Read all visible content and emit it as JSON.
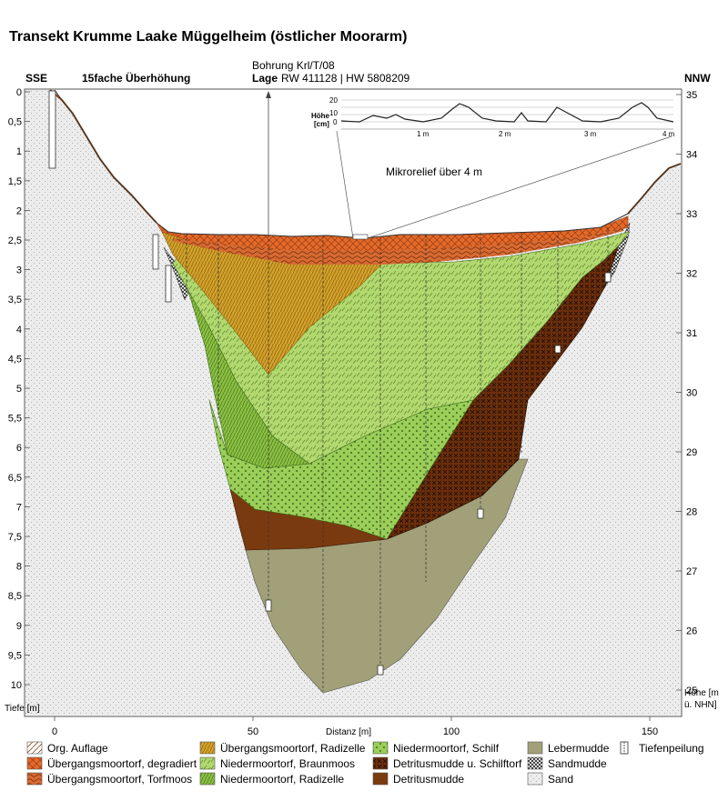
{
  "header": {
    "title": "Transekt Krumme Laake Müggelheim (östlicher Moorarm)",
    "left_label": "SSE",
    "right_label": "NNW",
    "exaggeration": "15fache Überhöhung",
    "borehole_label": "Bohrung Krl/T/08",
    "location_bold": "Lage",
    "location_value": "RW 411128 | HW 5808209"
  },
  "inset": {
    "title": "Mikrorelief über 4 m",
    "ylabel_line1": "Höhe",
    "ylabel_line2": "[cm]",
    "y_ticks": [
      "20",
      "10",
      "0"
    ],
    "x_ticks": [
      "1 m",
      "2 m",
      "3 m",
      "4 m"
    ]
  },
  "axes": {
    "left_ticks": [
      "0",
      "0,5",
      "1",
      "1,5",
      "2",
      "2,5",
      "3",
      "3,5",
      "4",
      "4,5",
      "5",
      "5,5",
      "6",
      "6,5",
      "7",
      "7,5",
      "8",
      "8,5",
      "9",
      "9,5",
      "10"
    ],
    "right_ticks": [
      "35",
      "34",
      "33",
      "32",
      "31",
      "30",
      "29",
      "28",
      "27",
      "26",
      "25"
    ],
    "bottom_ticks": [
      "0",
      "50",
      "100",
      "150"
    ],
    "left_title": "Tiefe [m]",
    "right_title_line1": "Höhe [m",
    "right_title_line2": "ü. NHN]",
    "bottom_title": "Distanz [m]"
  },
  "legend": [
    {
      "key": "org",
      "label": "Org. Auflage"
    },
    {
      "key": "degr",
      "label": "Übergangsmoortorf, degradiert"
    },
    {
      "key": "torf",
      "label": "Übergangsmoortorf, Torfmoos"
    },
    {
      "key": "radu",
      "label": "Übergangsmoortorf, Radizelle"
    },
    {
      "key": "braun",
      "label": "Niedermoortorf, Braunmoos"
    },
    {
      "key": "radn",
      "label": "Niedermoortorf, Radizelle"
    },
    {
      "key": "schilf",
      "label": "Niedermoortorf, Schilf"
    },
    {
      "key": "detschilf",
      "label": "Detritusmudde u. Schilftorf"
    },
    {
      "key": "det",
      "label": "Detritusmudde"
    },
    {
      "key": "leber",
      "label": "Lebermudde"
    },
    {
      "key": "sandm",
      "label": "Sandmudde"
    },
    {
      "key": "sand",
      "label": "Sand"
    },
    {
      "key": "peil",
      "label": "Tiefenpeilung"
    }
  ],
  "colors": {
    "sand": "#ececec",
    "lebermudde": "#a1a078",
    "detritusmudde": "#7a3a10",
    "detritus_schilf": "#6b2e0c",
    "niedermoor_schilf": "#9ccf5a",
    "niedermoor_braunmoos": "#b2d870",
    "niedermoor_radizelle": "#8cc043",
    "uebergang_radizelle": "#d4a22c",
    "uebergang_degradiert": "#e36a2a",
    "uebergang_torfmoos": "#d86a32"
  }
}
